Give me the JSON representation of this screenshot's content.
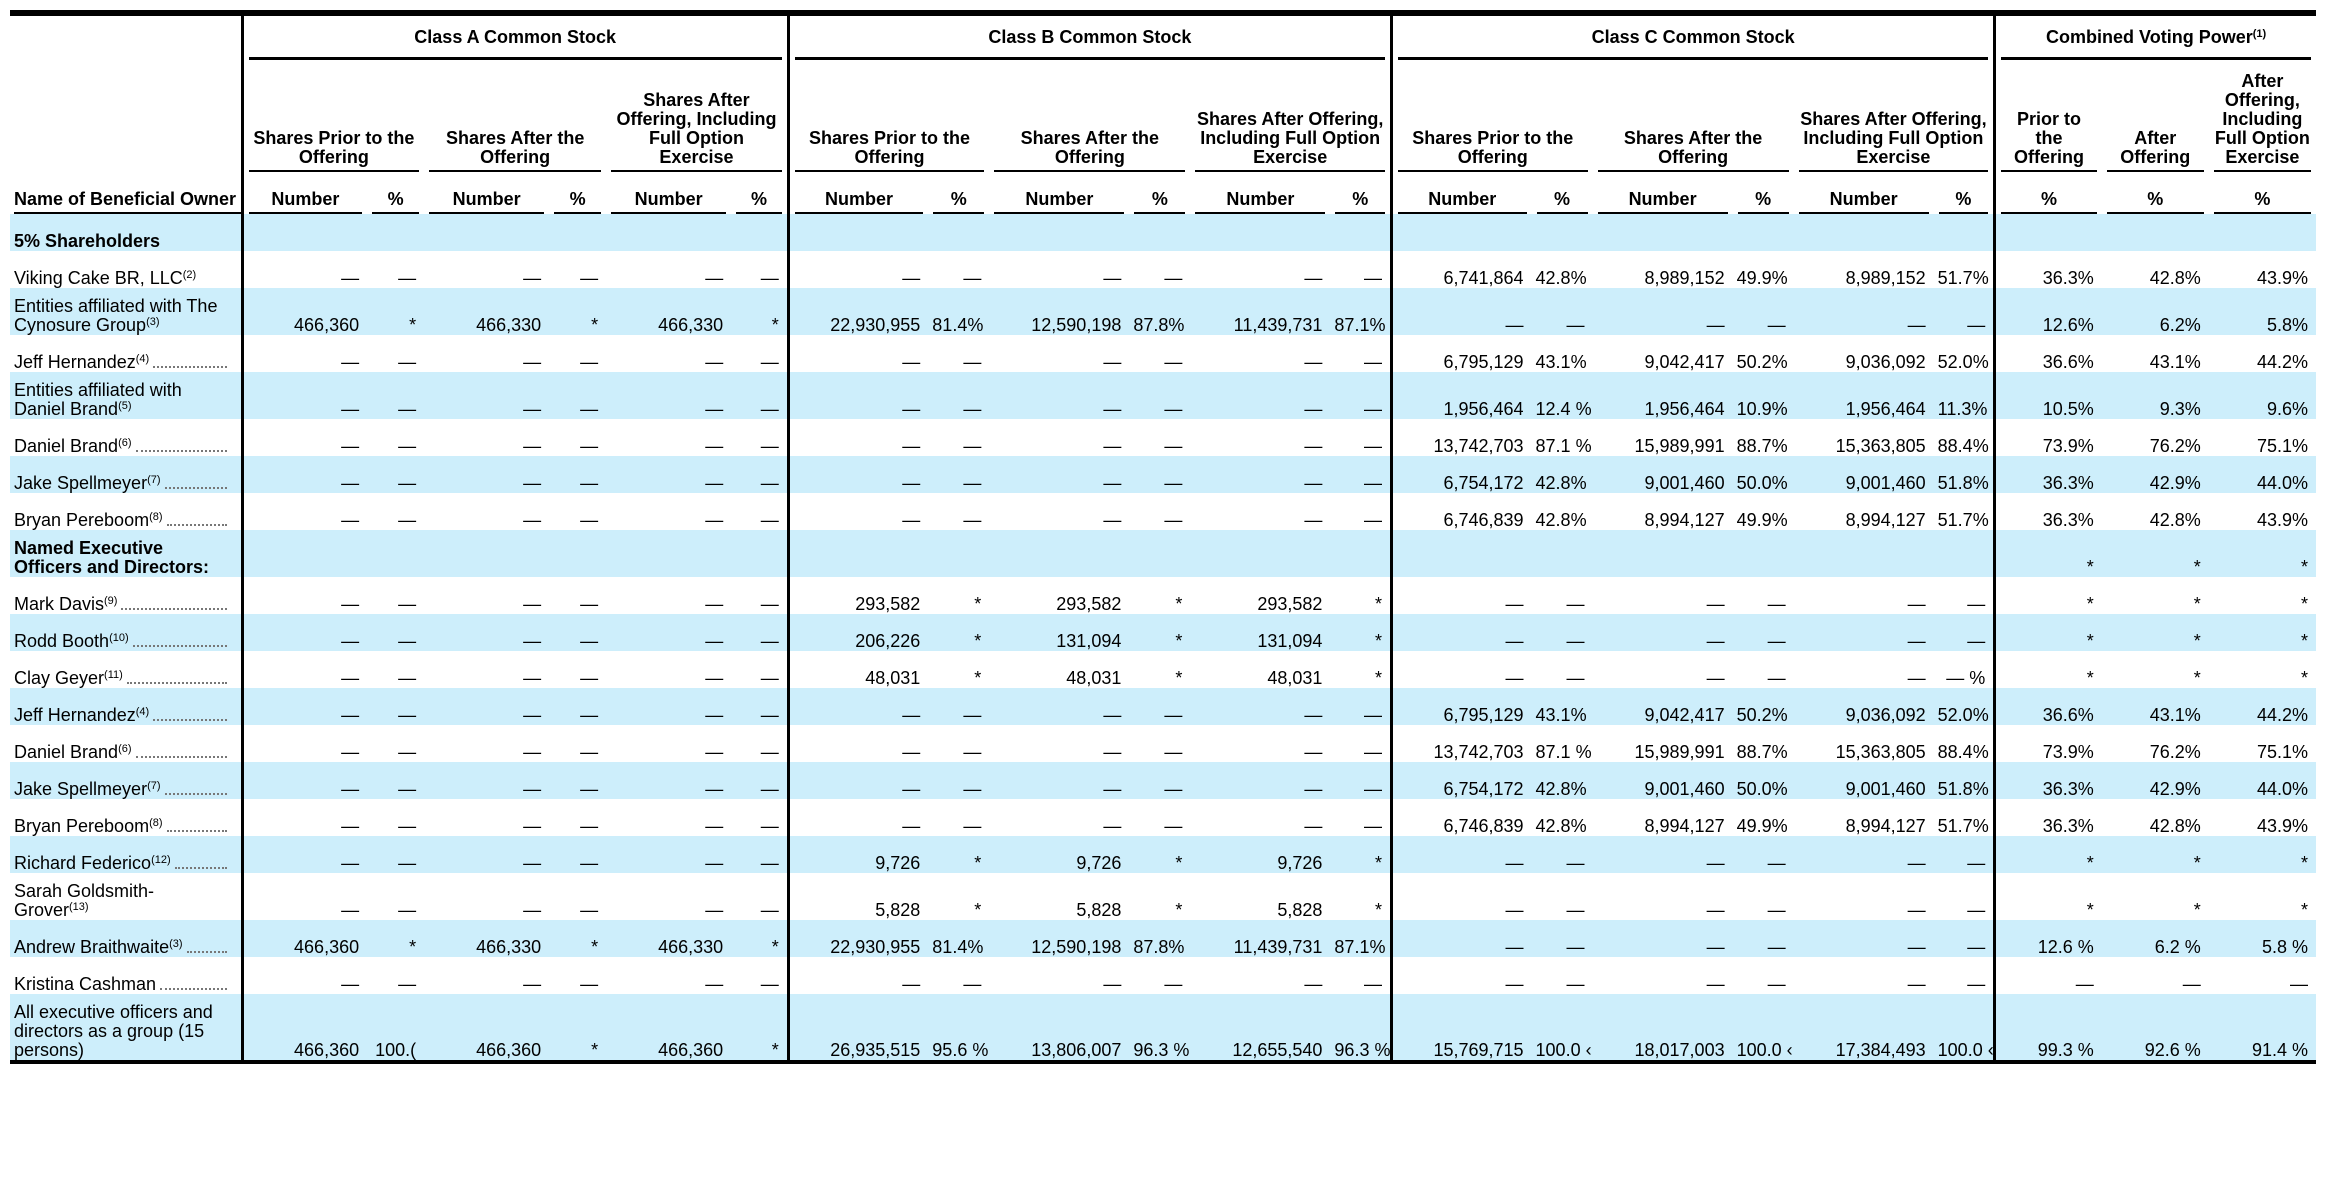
{
  "table": {
    "name_header": "Name of Beneficial Owner",
    "groups": [
      {
        "title": "Class A Common Stock",
        "columns": [
          {
            "title": "Shares Prior to the Offering",
            "sub": [
              "Number",
              "%"
            ]
          },
          {
            "title": "Shares After the Offering",
            "sub": [
              "Number",
              "%"
            ]
          },
          {
            "title": "Shares After Offering, Including Full Option Exercise",
            "sub": [
              "Number",
              "%"
            ]
          }
        ]
      },
      {
        "title": "Class B Common Stock",
        "columns": [
          {
            "title": "Shares Prior to the Offering",
            "sub": [
              "Number",
              "%"
            ]
          },
          {
            "title": "Shares After the Offering",
            "sub": [
              "Number",
              "%"
            ]
          },
          {
            "title": "Shares After Offering, Including Full Option Exercise",
            "sub": [
              "Number",
              "%"
            ]
          }
        ]
      },
      {
        "title": "Class C Common Stock",
        "columns": [
          {
            "title": "Shares Prior to the Offering",
            "sub": [
              "Number",
              "%"
            ]
          },
          {
            "title": "Shares After the Offering",
            "sub": [
              "Number",
              "%"
            ]
          },
          {
            "title": "Shares After Offering, Including Full Option Exercise",
            "sub": [
              "Number",
              "%"
            ]
          }
        ]
      },
      {
        "title": "Combined Voting Power",
        "note": "(1)",
        "columns": [
          {
            "title": "Prior to the Offering",
            "sub": [
              "%"
            ]
          },
          {
            "title": "After Offering",
            "sub": [
              "%"
            ]
          },
          {
            "title": "After Offering, Including Full Option Exercise",
            "sub": [
              "%"
            ]
          }
        ]
      }
    ],
    "rows": [
      {
        "name": "5% Shareholders",
        "kind": "section"
      },
      {
        "name": "Viking Cake BR, LLC",
        "note": "(2)",
        "cells": [
          "—",
          "—",
          "—",
          "—",
          "—",
          "—",
          "—",
          "—",
          "—",
          "—",
          "—",
          "—",
          "6,741,864",
          "42.8%",
          "8,989,152",
          "49.9%",
          "8,989,152",
          "51.7%",
          "36.3%",
          "42.8%",
          "43.9%"
        ]
      },
      {
        "name": "Entities affiliated with The Cynosure Group",
        "note": "(3)",
        "cells": [
          "466,360",
          "*",
          "466,330",
          "*",
          "466,330",
          "*",
          "22,930,955",
          "81.4%",
          "12,590,198",
          "87.8%",
          "11,439,731",
          "87.1%",
          "—",
          "—",
          "—",
          "—",
          "—",
          "—",
          "12.6%",
          "6.2%",
          "5.8%"
        ]
      },
      {
        "name": "Jeff Hernandez",
        "note": "(4)",
        "cells": [
          "—",
          "—",
          "—",
          "—",
          "—",
          "—",
          "—",
          "—",
          "—",
          "—",
          "—",
          "—",
          "6,795,129",
          "43.1%",
          "9,042,417",
          "50.2%",
          "9,036,092",
          "52.0%",
          "36.6%",
          "43.1%",
          "44.2%"
        ]
      },
      {
        "name": "Entities affiliated with Daniel Brand",
        "note": "(5)",
        "cells": [
          "—",
          "—",
          "—",
          "—",
          "—",
          "—",
          "—",
          "—",
          "—",
          "—",
          "—",
          "—",
          "1,956,464",
          "12.4 %",
          "1,956,464",
          "10.9%",
          "1,956,464",
          "11.3%",
          "10.5%",
          "9.3%",
          "9.6%"
        ]
      },
      {
        "name": "Daniel Brand",
        "note": "(6)",
        "cells": [
          "—",
          "—",
          "—",
          "—",
          "—",
          "—",
          "—",
          "—",
          "—",
          "—",
          "—",
          "—",
          "13,742,703",
          "87.1 %",
          "15,989,991",
          "88.7%",
          "15,363,805",
          "88.4%",
          "73.9%",
          "76.2%",
          "75.1%"
        ]
      },
      {
        "name": "Jake Spellmeyer",
        "note": "(7)",
        "cells": [
          "—",
          "—",
          "—",
          "—",
          "—",
          "—",
          "—",
          "—",
          "—",
          "—",
          "—",
          "—",
          "6,754,172",
          "42.8%",
          "9,001,460",
          "50.0%",
          "9,001,460",
          "51.8%",
          "36.3%",
          "42.9%",
          "44.0%"
        ]
      },
      {
        "name": "Bryan Pereboom",
        "note": "(8)",
        "cells": [
          "—",
          "—",
          "—",
          "—",
          "—",
          "—",
          "—",
          "—",
          "—",
          "—",
          "—",
          "—",
          "6,746,839",
          "42.8%",
          "8,994,127",
          "49.9%",
          "8,994,127",
          "51.7%",
          "36.3%",
          "42.8%",
          "43.9%"
        ]
      },
      {
        "name": "Named Executive Officers and Directors:",
        "kind": "section",
        "cells": [
          null,
          null,
          null,
          null,
          null,
          null,
          null,
          null,
          null,
          null,
          null,
          null,
          null,
          null,
          null,
          null,
          null,
          null,
          "*",
          "*",
          "*"
        ]
      },
      {
        "name": "Mark Davis",
        "note": "(9)",
        "cells": [
          "—",
          "—",
          "—",
          "—",
          "—",
          "—",
          "293,582",
          "*",
          "293,582",
          "*",
          "293,582",
          "*",
          "—",
          "—",
          "—",
          "—",
          "—",
          "—",
          "*",
          "*",
          "*"
        ]
      },
      {
        "name": "Rodd Booth",
        "note": "(10)",
        "cells": [
          "—",
          "—",
          "—",
          "—",
          "—",
          "—",
          "206,226",
          "*",
          "131,094",
          "*",
          "131,094",
          "*",
          "—",
          "—",
          "—",
          "—",
          "—",
          "—",
          "*",
          "*",
          "*"
        ]
      },
      {
        "name": "Clay Geyer",
        "note": "(11)",
        "cells": [
          "—",
          "—",
          "—",
          "—",
          "—",
          "—",
          "48,031",
          "*",
          "48,031",
          "*",
          "48,031",
          "*",
          "—",
          "—",
          "—",
          "—",
          "—",
          "— %",
          "*",
          "*",
          "*"
        ]
      },
      {
        "name": "Jeff Hernandez",
        "note": "(4)",
        "cells": [
          "—",
          "—",
          "—",
          "—",
          "—",
          "—",
          "—",
          "—",
          "—",
          "—",
          "—",
          "—",
          "6,795,129",
          "43.1%",
          "9,042,417",
          "50.2%",
          "9,036,092",
          "52.0%",
          "36.6%",
          "43.1%",
          "44.2%"
        ]
      },
      {
        "name": "Daniel Brand",
        "note": "(6)",
        "cells": [
          "—",
          "—",
          "—",
          "—",
          "—",
          "—",
          "—",
          "—",
          "—",
          "—",
          "—",
          "—",
          "13,742,703",
          "87.1 %",
          "15,989,991",
          "88.7%",
          "15,363,805",
          "88.4%",
          "73.9%",
          "76.2%",
          "75.1%"
        ]
      },
      {
        "name": "Jake Spellmeyer",
        "note": "(7)",
        "cells": [
          "—",
          "—",
          "—",
          "—",
          "—",
          "—",
          "—",
          "—",
          "—",
          "—",
          "—",
          "—",
          "6,754,172",
          "42.8%",
          "9,001,460",
          "50.0%",
          "9,001,460",
          "51.8%",
          "36.3%",
          "42.9%",
          "44.0%"
        ]
      },
      {
        "name": "Bryan Pereboom",
        "note": "(8)",
        "cells": [
          "—",
          "—",
          "—",
          "—",
          "—",
          "—",
          "—",
          "—",
          "—",
          "—",
          "—",
          "—",
          "6,746,839",
          "42.8%",
          "8,994,127",
          "49.9%",
          "8,994,127",
          "51.7%",
          "36.3%",
          "42.8%",
          "43.9%"
        ]
      },
      {
        "name": "Richard Federico",
        "note": "(12)",
        "cells": [
          "—",
          "—",
          "—",
          "—",
          "—",
          "—",
          "9,726",
          "*",
          "9,726",
          "*",
          "9,726",
          "*",
          "—",
          "—",
          "—",
          "—",
          "—",
          "—",
          "*",
          "*",
          "*"
        ]
      },
      {
        "name": "Sarah Goldsmith-Grover",
        "note": "(13)",
        "cells": [
          "—",
          "—",
          "—",
          "—",
          "—",
          "—",
          "5,828",
          "*",
          "5,828",
          "*",
          "5,828",
          "*",
          "—",
          "—",
          "—",
          "—",
          "—",
          "—",
          "*",
          "*",
          "*"
        ]
      },
      {
        "name": "Andrew Braithwaite",
        "note": "(3)",
        "cells": [
          "466,360",
          "*",
          "466,330",
          "*",
          "466,330",
          "*",
          "22,930,955",
          "81.4%",
          "12,590,198",
          "87.8%",
          "11,439,731",
          "87.1%",
          "—",
          "—",
          "—",
          "—",
          "—",
          "—",
          "12.6 %",
          "6.2 %",
          "5.8 %"
        ]
      },
      {
        "name": "Kristina Cashman",
        "cells": [
          "—",
          "—",
          "—",
          "—",
          "—",
          "—",
          "—",
          "—",
          "—",
          "—",
          "—",
          "—",
          "—",
          "—",
          "—",
          "—",
          "—",
          "—",
          "—",
          "—",
          "—"
        ]
      },
      {
        "name": "All executive officers and directors as a group (15 persons)",
        "cells": [
          "466,360",
          "100.(",
          "466,360",
          "*",
          "466,360",
          "*",
          "26,935,515",
          "95.6 %",
          "13,806,007",
          "96.3 %",
          "12,655,540",
          "96.3 %",
          "15,769,715",
          "100.0 ‹",
          "18,017,003",
          "100.0 ‹",
          "17,384,493",
          "100.0 ‹",
          "99.3 %",
          "92.6 %",
          "91.4 %"
        ]
      }
    ]
  }
}
